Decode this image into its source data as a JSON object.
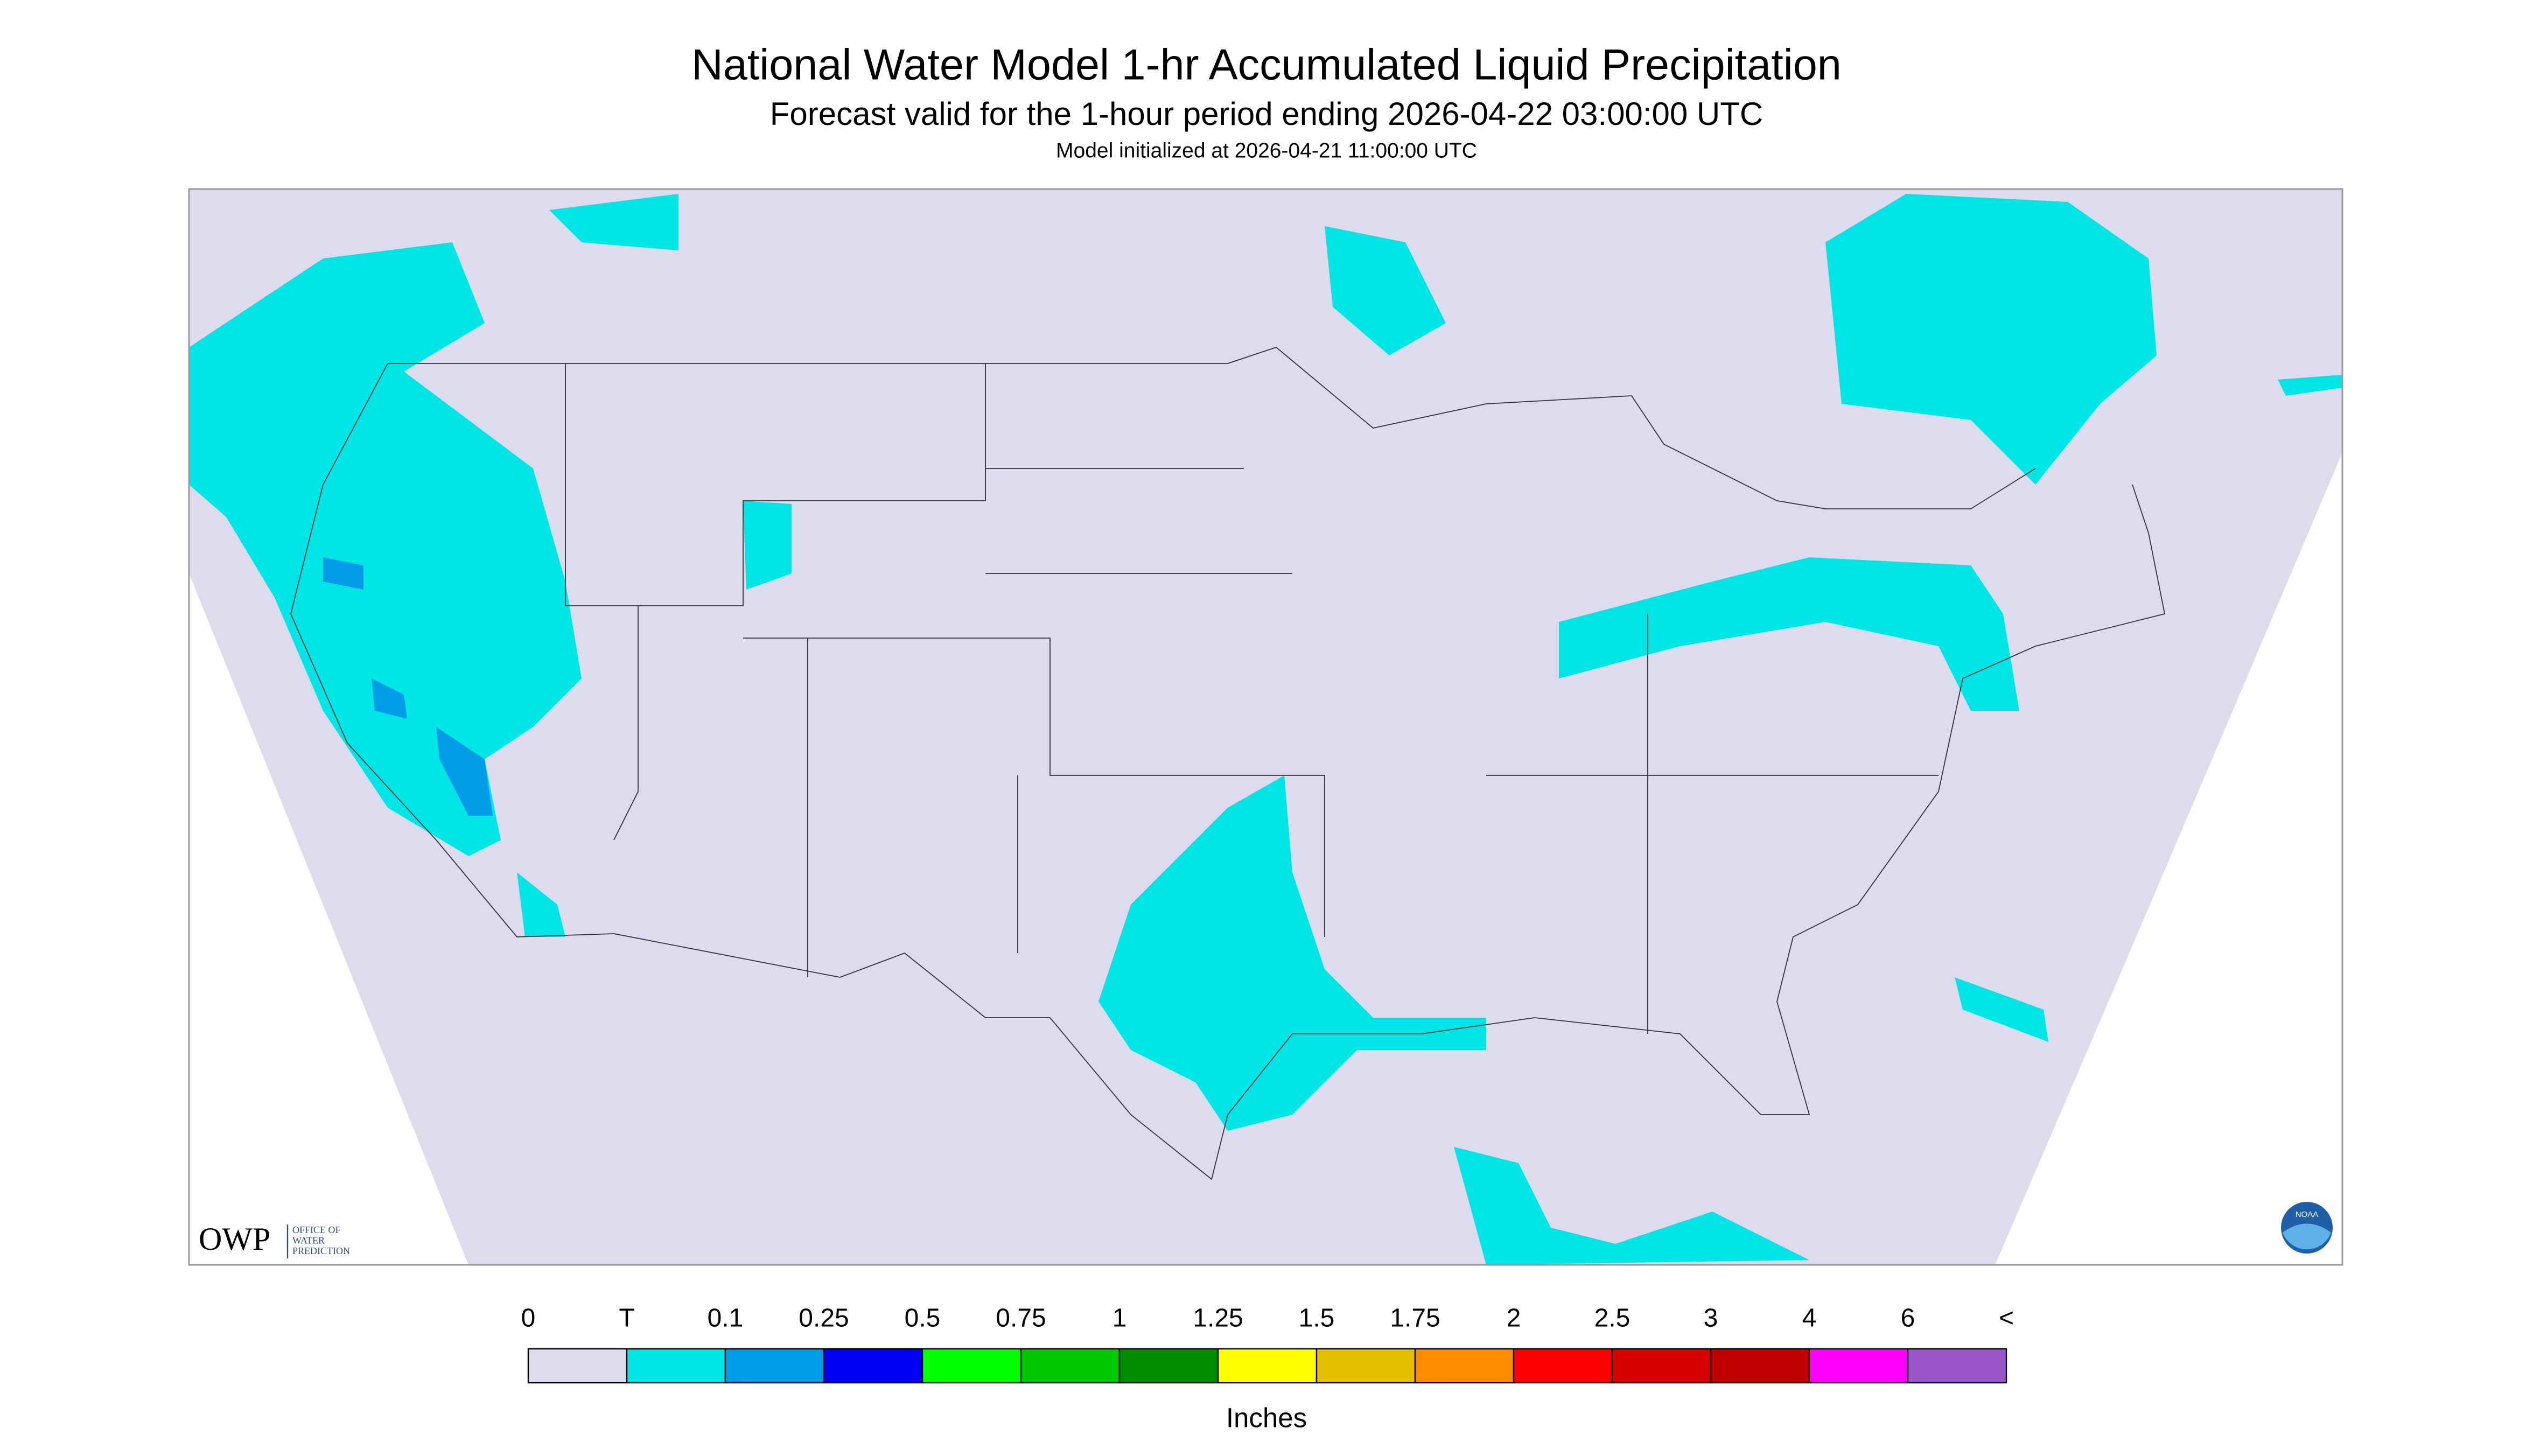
{
  "header": {
    "title": "National Water Model 1-hr Accumulated Liquid Precipitation",
    "subtitle": "Forecast valid for the 1-hour period ending 2026-04-22 03:00:00 UTC",
    "note": "Model initialized at 2026-04-21 11:00:00 UTC"
  },
  "legend": {
    "labels": [
      "0",
      "T",
      "0.1",
      "0.25",
      "0.5",
      "0.75",
      "1",
      "1.25",
      "1.5",
      "1.75",
      "2",
      "2.5",
      "3",
      "4",
      "6",
      "<"
    ],
    "colors": [
      "#dcdcee",
      "#00e5e5",
      "#009ce8",
      "#0000f5",
      "#00ff00",
      "#00c800",
      "#008c00",
      "#ffff00",
      "#e6c000",
      "#ff8c00",
      "#ff0000",
      "#d70000",
      "#c00000",
      "#ff00ff",
      "#9955c9"
    ],
    "unit": "Inches"
  },
  "logos": {
    "owp": "OWP",
    "owp_lines": [
      "OFFICE OF",
      "WATER",
      "PREDICTION"
    ],
    "noaa": "NOAA"
  }
}
